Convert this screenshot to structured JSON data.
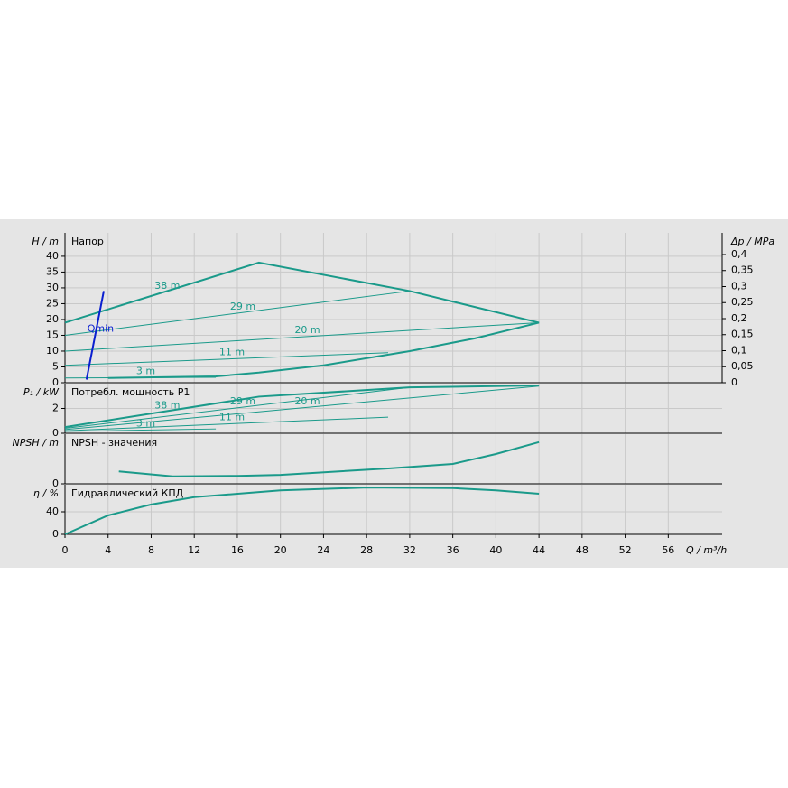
{
  "chart_data": [
    {
      "type": "line",
      "title": "Напор",
      "ylabel": "H / m",
      "y2label": "Δp / MPa",
      "xlim": [
        0,
        61
      ],
      "ylim": [
        0,
        47.4
      ],
      "yticks": [
        0,
        5,
        10,
        15,
        20,
        25,
        30,
        35,
        40
      ],
      "y2lim": [
        0,
        0.4676
      ],
      "y2ticks": [
        0,
        {
          "value": 0.05,
          "label": "0,05"
        },
        {
          "value": 0.1,
          "label": "0,1"
        },
        {
          "value": 0.15,
          "label": "0,15"
        },
        {
          "value": 0.2,
          "label": "0,2"
        },
        {
          "value": 0.25,
          "label": "0,25"
        },
        {
          "value": 0.3,
          "label": "0,3"
        },
        {
          "value": 0.35,
          "label": "0,35"
        },
        {
          "value": 0.4,
          "label": "0,4"
        }
      ],
      "series": [
        {
          "name": "38 m",
          "color": "#1a9a8a",
          "line_width": 2,
          "x": [
            0,
            18,
            32,
            44
          ],
          "y": [
            19,
            38,
            29,
            19
          ]
        },
        {
          "name": "29 m",
          "color": "#1a9a8a",
          "line_width": 1,
          "x": [
            0,
            32
          ],
          "y": [
            15,
            29
          ]
        },
        {
          "name": "20 m",
          "color": "#1a9a8a",
          "line_width": 1,
          "x": [
            0,
            44
          ],
          "y": [
            10,
            19
          ]
        },
        {
          "name": "11 m",
          "color": "#1a9a8a",
          "line_width": 1,
          "x": [
            0,
            30
          ],
          "y": [
            5.5,
            9.5
          ]
        },
        {
          "name": "3 m",
          "color": "#1a9a8a",
          "line_width": 1,
          "x": [
            0,
            14
          ],
          "y": [
            1.5,
            1.7
          ]
        },
        {
          "color": "#1a9a8a",
          "line_width": 2,
          "x": [
            4,
            14,
            18,
            24,
            32,
            38,
            44
          ],
          "y": [
            1.5,
            2,
            3.2,
            5.5,
            10,
            14,
            19
          ]
        },
        {
          "name": "Qmin",
          "color": "#0a1fd0",
          "line_width": 2,
          "x": [
            2,
            3.6
          ],
          "y": [
            1,
            29
          ]
        }
      ]
    },
    {
      "type": "line",
      "title": "Потребл. мощность P1",
      "ylabel": "P₁ / kW",
      "xlim": [
        0,
        61
      ],
      "ylim": [
        0,
        4
      ],
      "yticks": [
        0,
        2
      ],
      "series": [
        {
          "name": "38 m",
          "color": "#1a9a8a",
          "line_width": 2,
          "x": [
            0,
            18,
            32,
            44
          ],
          "y": [
            0.5,
            2.95,
            3.7,
            3.85
          ]
        },
        {
          "name": "29 m",
          "color": "#1a9a8a",
          "line_width": 1,
          "x": [
            0,
            32
          ],
          "y": [
            0.4,
            3.7
          ]
        },
        {
          "name": "20 m",
          "color": "#1a9a8a",
          "line_width": 1,
          "x": [
            0,
            44
          ],
          "y": [
            0.3,
            3.8
          ]
        },
        {
          "name": "11 m",
          "color": "#1a9a8a",
          "line_width": 1,
          "x": [
            0,
            30
          ],
          "y": [
            0.2,
            1.3
          ]
        },
        {
          "name": "3 m",
          "color": "#1a9a8a",
          "line_width": 1,
          "x": [
            0,
            14
          ],
          "y": [
            0.15,
            0.35
          ]
        }
      ]
    },
    {
      "type": "line",
      "title": "NPSH - значения",
      "ylabel": "NPSH / m",
      "xlim": [
        0,
        61
      ],
      "ylim": [
        0,
        10
      ],
      "yticks": [
        0
      ],
      "series": [
        {
          "color": "#1a9a8a",
          "line_width": 2,
          "x": [
            5,
            10,
            16,
            20,
            30,
            36,
            40,
            44
          ],
          "y": [
            2.5,
            1.5,
            1.6,
            1.8,
            3.1,
            4,
            6,
            8.4
          ]
        }
      ]
    },
    {
      "type": "line",
      "title": "Гидравлический КПД",
      "ylabel": "η / %",
      "xlabel": "Q / m³/h",
      "xlim": [
        0,
        61
      ],
      "ylim": [
        0,
        88
      ],
      "yticks": [
        0,
        40
      ],
      "xticks": [
        0,
        4,
        8,
        12,
        16,
        20,
        24,
        28,
        32,
        36,
        40,
        44,
        48,
        52,
        56
      ],
      "series": [
        {
          "color": "#1a9a8a",
          "line_width": 2,
          "x": [
            0,
            4,
            8,
            12,
            20,
            28,
            36,
            40,
            44
          ],
          "y": [
            0,
            33.6,
            53,
            66,
            78,
            83,
            82,
            78,
            72
          ]
        }
      ]
    }
  ]
}
